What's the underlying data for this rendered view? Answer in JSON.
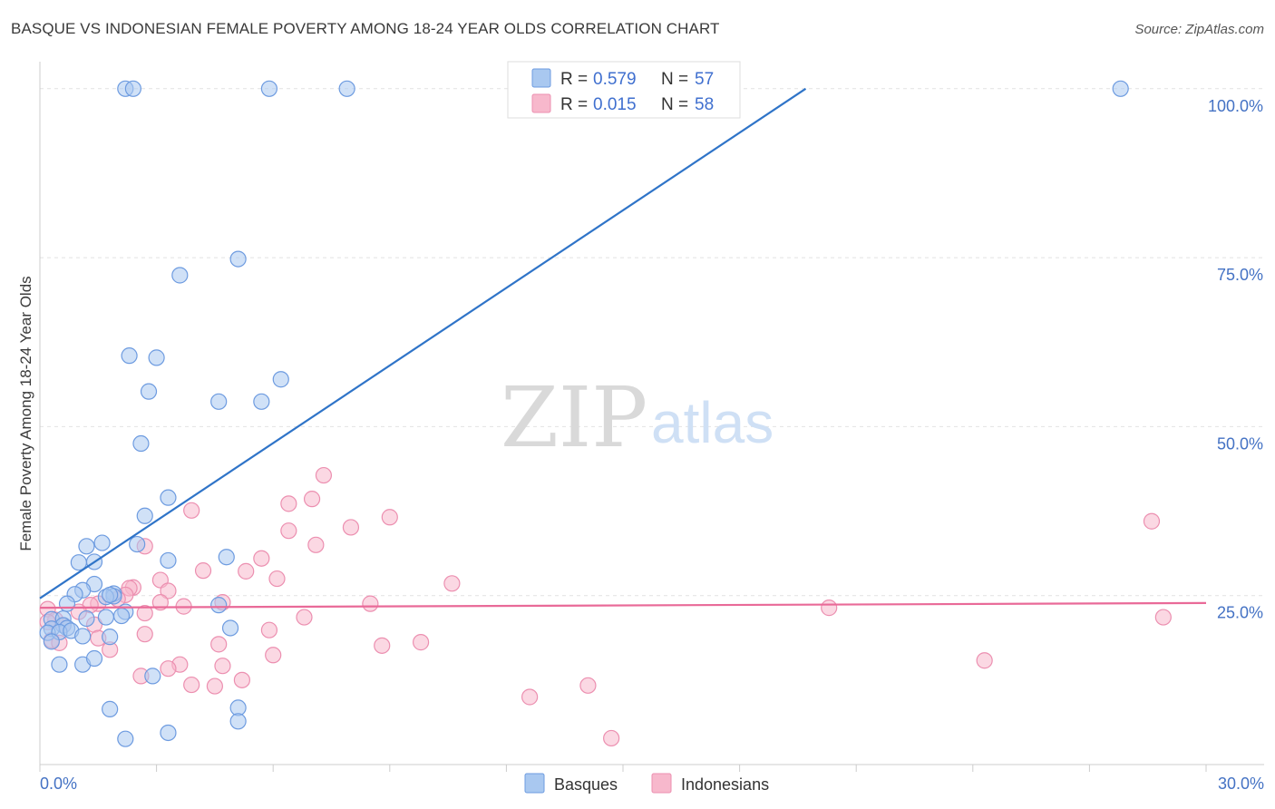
{
  "title": "BASQUE VS INDONESIAN FEMALE POVERTY AMONG 18-24 YEAR OLDS CORRELATION CHART",
  "source": "Source: ZipAtlas.com",
  "watermark": {
    "zip": "ZIP",
    "atlas": "atlas"
  },
  "legend": {
    "r_label": "R =",
    "n_label": "N =",
    "rows": [
      {
        "r": "0.579",
        "n": "57"
      },
      {
        "r": "0.015",
        "n": "58"
      }
    ]
  },
  "colors": {
    "basque_fill": "#a9c8f0",
    "basque_stroke": "#6d9be0",
    "basque_line": "#2f74c8",
    "indo_fill": "#f7b8cc",
    "indo_stroke": "#ec8fb0",
    "indo_line": "#e96a98",
    "tick_text": "#4472c4"
  },
  "chart_data": {
    "type": "scatter",
    "title": "BASQUE VS INDONESIAN FEMALE POVERTY AMONG 18-24 YEAR OLDS CORRELATION CHART",
    "xlabel": "",
    "ylabel": "Female Poverty Among 18-24 Year Olds",
    "xlim": [
      0,
      30
    ],
    "ylim": [
      0,
      104
    ],
    "x_tick_labels": [
      "0.0%",
      "30.0%"
    ],
    "y_ticks": [
      25,
      50,
      75,
      100
    ],
    "y_tick_labels": [
      "25.0%",
      "50.0%",
      "75.0%",
      "100.0%"
    ],
    "grid": true,
    "legend_position": "top-center",
    "series": [
      {
        "name": "Basques",
        "r": 0.579,
        "n": 57,
        "trend": {
          "x": [
            0,
            19.7
          ],
          "y": [
            24.6,
            100
          ]
        },
        "points": [
          [
            2.2,
            100
          ],
          [
            2.4,
            100
          ],
          [
            5.9,
            100
          ],
          [
            7.9,
            100
          ],
          [
            27.8,
            100
          ],
          [
            5.1,
            74.8
          ],
          [
            3.6,
            72.4
          ],
          [
            2.3,
            60.5
          ],
          [
            3.0,
            60.2
          ],
          [
            6.2,
            57.0
          ],
          [
            2.8,
            55.2
          ],
          [
            4.6,
            53.7
          ],
          [
            5.7,
            53.7
          ],
          [
            2.6,
            47.5
          ],
          [
            3.3,
            39.5
          ],
          [
            2.7,
            36.8
          ],
          [
            1.6,
            32.8
          ],
          [
            1.2,
            32.3
          ],
          [
            2.5,
            32.6
          ],
          [
            4.8,
            30.7
          ],
          [
            3.3,
            30.2
          ],
          [
            1.4,
            30.0
          ],
          [
            1.0,
            29.9
          ],
          [
            1.4,
            26.7
          ],
          [
            1.1,
            25.8
          ],
          [
            0.9,
            25.2
          ],
          [
            1.9,
            25.3
          ],
          [
            1.9,
            24.9
          ],
          [
            1.7,
            24.8
          ],
          [
            1.8,
            25.1
          ],
          [
            0.7,
            23.8
          ],
          [
            0.3,
            21.5
          ],
          [
            4.6,
            23.6
          ],
          [
            2.2,
            22.6
          ],
          [
            2.1,
            22.0
          ],
          [
            1.7,
            21.8
          ],
          [
            1.2,
            21.6
          ],
          [
            0.6,
            21.6
          ],
          [
            0.6,
            20.6
          ],
          [
            0.7,
            20.2
          ],
          [
            0.3,
            20.1
          ],
          [
            0.2,
            19.5
          ],
          [
            0.5,
            19.6
          ],
          [
            0.8,
            19.8
          ],
          [
            1.8,
            18.9
          ],
          [
            0.3,
            18.2
          ],
          [
            4.9,
            20.2
          ],
          [
            1.1,
            19.0
          ],
          [
            0.5,
            14.8
          ],
          [
            1.1,
            14.8
          ],
          [
            1.4,
            15.7
          ],
          [
            2.9,
            13.1
          ],
          [
            1.8,
            8.2
          ],
          [
            5.1,
            8.4
          ],
          [
            5.1,
            6.4
          ],
          [
            3.3,
            4.7
          ],
          [
            2.2,
            3.8
          ]
        ]
      },
      {
        "name": "Indonesians",
        "r": 0.015,
        "n": 58,
        "trend": {
          "x": [
            0,
            30
          ],
          "y": [
            23.2,
            23.9
          ]
        },
        "points": [
          [
            7.3,
            42.8
          ],
          [
            7.0,
            39.3
          ],
          [
            6.4,
            38.6
          ],
          [
            3.9,
            37.6
          ],
          [
            9.0,
            36.6
          ],
          [
            28.6,
            36.0
          ],
          [
            8.0,
            35.1
          ],
          [
            6.4,
            34.6
          ],
          [
            7.1,
            32.5
          ],
          [
            2.7,
            32.3
          ],
          [
            5.7,
            30.5
          ],
          [
            4.2,
            28.7
          ],
          [
            5.3,
            28.6
          ],
          [
            6.1,
            27.5
          ],
          [
            3.1,
            27.3
          ],
          [
            10.6,
            26.8
          ],
          [
            2.4,
            26.2
          ],
          [
            2.3,
            26.1
          ],
          [
            3.3,
            25.7
          ],
          [
            2.2,
            25.1
          ],
          [
            2.0,
            24.5
          ],
          [
            4.7,
            24.0
          ],
          [
            1.5,
            23.8
          ],
          [
            3.1,
            24.0
          ],
          [
            8.5,
            23.8
          ],
          [
            3.7,
            23.4
          ],
          [
            1.3,
            23.6
          ],
          [
            0.2,
            23.0
          ],
          [
            20.3,
            23.2
          ],
          [
            1.0,
            22.6
          ],
          [
            2.7,
            22.4
          ],
          [
            6.8,
            21.8
          ],
          [
            28.9,
            21.8
          ],
          [
            0.4,
            21.4
          ],
          [
            0.2,
            21.1
          ],
          [
            0.6,
            20.6
          ],
          [
            1.4,
            20.7
          ],
          [
            5.9,
            19.9
          ],
          [
            2.7,
            19.3
          ],
          [
            1.5,
            18.7
          ],
          [
            0.3,
            18.4
          ],
          [
            0.5,
            18.0
          ],
          [
            4.6,
            17.8
          ],
          [
            8.8,
            17.6
          ],
          [
            9.8,
            18.1
          ],
          [
            1.8,
            17.0
          ],
          [
            6.0,
            16.2
          ],
          [
            24.3,
            15.4
          ],
          [
            3.6,
            14.8
          ],
          [
            4.7,
            14.6
          ],
          [
            3.3,
            14.2
          ],
          [
            2.6,
            13.1
          ],
          [
            5.2,
            12.5
          ],
          [
            3.9,
            11.8
          ],
          [
            4.5,
            11.6
          ],
          [
            14.1,
            11.7
          ],
          [
            12.6,
            10.0
          ],
          [
            14.7,
            3.9
          ]
        ]
      }
    ]
  }
}
